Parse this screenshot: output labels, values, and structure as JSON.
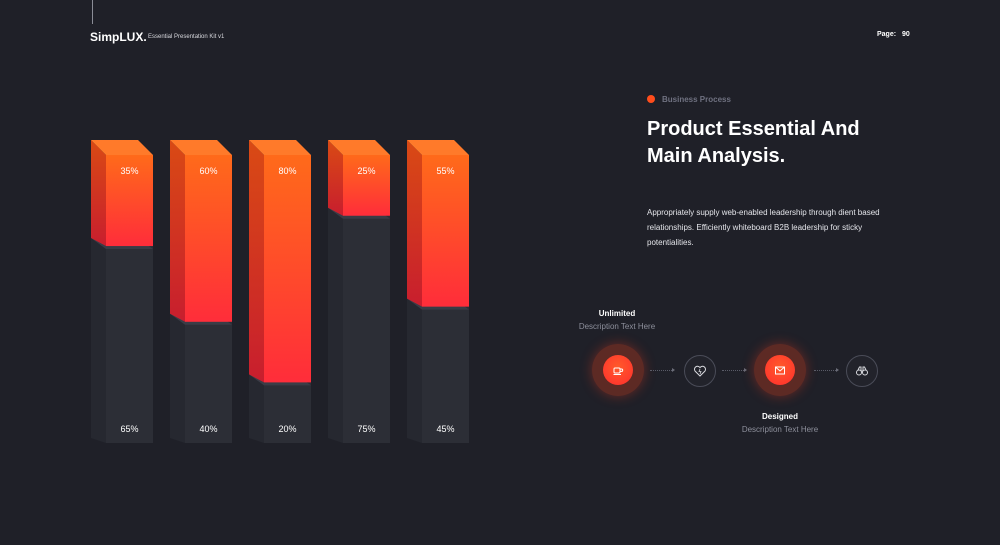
{
  "header": {
    "brand": "SimpLUX.",
    "kit_name": "Essential Presentation Kit v1",
    "page_label": "Page:",
    "page_number": "90"
  },
  "content": {
    "section_label": "Business Process",
    "headline_line1": "Product Essential And",
    "headline_line2": "Main Analysis.",
    "body": "Appropriately supply web-enabled leadership through dient based relationships. Efficiently whiteboard B2B leadership for sticky potentialities."
  },
  "process": {
    "steps": [
      {
        "title": "Unlimited",
        "desc": "Description Text Here",
        "icon": "coffee-cup-icon"
      },
      {
        "icon": "heart-icon"
      },
      {
        "title": "Designed",
        "desc": "Description Text Here",
        "icon": "envelope-icon"
      },
      {
        "icon": "binoculars-icon"
      }
    ]
  },
  "colors": {
    "background": "#1f2028",
    "accent_top": "#ff6a1a",
    "accent_bottom": "#ff2d3a",
    "bar_dark": "#2c2e36"
  },
  "chart_data": {
    "type": "bar",
    "stacked": true,
    "orientation": "vertical",
    "categories": [
      "",
      "",
      "",
      "",
      ""
    ],
    "series": [
      {
        "values": [
          35,
          60,
          80,
          25,
          55
        ],
        "labels": [
          "35%",
          "60%",
          "80%",
          "25%",
          "55%"
        ],
        "color": "orange-red gradient"
      },
      {
        "values": [
          65,
          40,
          20,
          75,
          45
        ],
        "labels": [
          "65%",
          "40%",
          "20%",
          "75%",
          "45%"
        ],
        "color": "dark gray"
      }
    ],
    "ylim": [
      0,
      100
    ],
    "title": "",
    "xlabel": "",
    "ylabel": "",
    "grid": false,
    "legend": "none"
  }
}
